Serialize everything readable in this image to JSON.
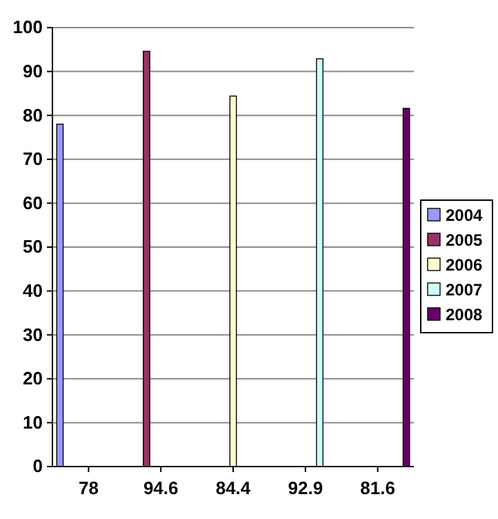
{
  "chart_data": {
    "type": "bar",
    "categories": [
      "78",
      "94.6",
      "84.4",
      "92.9",
      "81.6"
    ],
    "series": [
      {
        "name": "2004",
        "color": "#9999ff",
        "values": [
          78,
          null,
          null,
          null,
          null
        ]
      },
      {
        "name": "2005",
        "color": "#993366",
        "values": [
          null,
          94.6,
          null,
          null,
          null
        ]
      },
      {
        "name": "2006",
        "color": "#ffffcc",
        "values": [
          null,
          null,
          84.4,
          null,
          null
        ]
      },
      {
        "name": "2007",
        "color": "#ccffff",
        "values": [
          null,
          null,
          null,
          92.9,
          null
        ]
      },
      {
        "name": "2008",
        "color": "#660066",
        "values": [
          null,
          null,
          null,
          null,
          81.6
        ]
      }
    ],
    "ylim": [
      0,
      100
    ],
    "yticks": [
      0,
      10,
      20,
      30,
      40,
      50,
      60,
      70,
      80,
      90,
      100
    ],
    "grid": "y",
    "legend": "right"
  }
}
